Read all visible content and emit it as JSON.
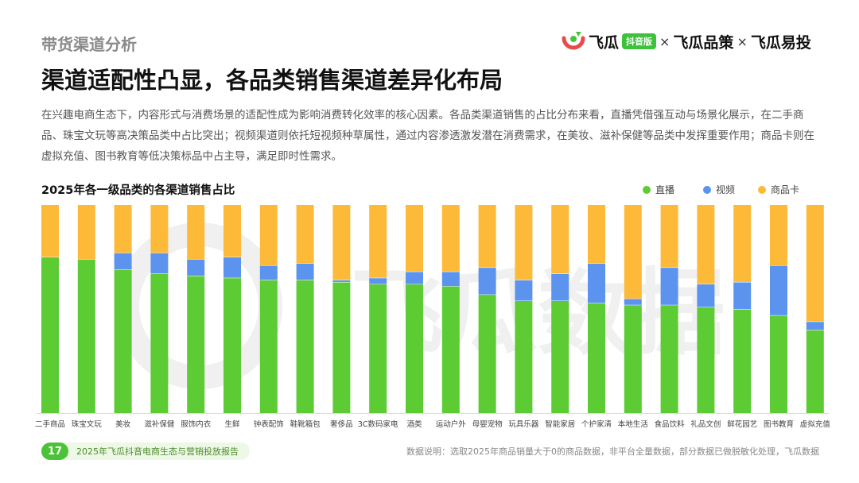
{
  "header": {
    "section": "带货渠道分析",
    "headline": "渠道适配性凸显，各品类销售渠道差异化布局",
    "intro": "在兴趣电商生态下，内容形式与消费场景的适配性成为影响消费转化效率的核心因素。各品类渠道销售的占比分布来看，直播凭借强互动与场景化展示，在二手商品、珠宝文玩等高决策品类中占比突出；视频渠道则依托短视频种草属性，通过内容渗透激发潜在消费需求，在美妆、滋补保健等品类中发挥重要作用；商品卡则在虚拟充值、图书教育等低决策标品中占主导，满足即时性需求。"
  },
  "logo": {
    "brand": "飞瓜",
    "badge": "抖音版",
    "sep": "×",
    "product2": "飞瓜品策",
    "product3": "飞瓜易投",
    "mark": "feigua-logo-icon"
  },
  "watermark": "飞瓜数据",
  "footer": {
    "page": "17",
    "report": "2025年飞瓜抖音电商生态与营销投放报告",
    "note": "数据说明：选取2025年商品销量大于0的商品数据，非平台全量数据，部分数据已做脱敏化处理，飞瓜数据"
  },
  "colors": {
    "live": "#5ccb34",
    "video": "#5b93ef",
    "card": "#fcba38",
    "brand_green": "#4cc238",
    "brand_red": "#e94b4b"
  },
  "chart_data": {
    "type": "bar",
    "stacked": true,
    "percent": true,
    "title": "2025年各一级品类的各渠道销售占比",
    "legend_position": "top-right",
    "grid": false,
    "ylim": [
      0,
      100
    ],
    "categories": [
      "二手商品",
      "珠宝文玩",
      "美妆",
      "滋补保健",
      "服饰内衣",
      "生鲜",
      "钟表配饰",
      "鞋靴箱包",
      "奢侈品",
      "3C数码家电",
      "酒类",
      "运动户外",
      "母婴宠物",
      "玩具乐器",
      "智能家居",
      "个护家清",
      "本地生活",
      "食品饮料",
      "礼品文创",
      "鲜花园艺",
      "图书教育",
      "虚拟充值"
    ],
    "series": [
      {
        "name": "直播",
        "values": [
          75,
          74,
          69,
          67,
          66,
          65,
          64,
          64,
          63,
          62,
          62,
          61,
          57,
          54,
          54,
          53,
          52,
          52,
          51,
          50,
          47,
          40
        ]
      },
      {
        "name": "视频",
        "values": [
          0,
          0,
          8,
          10,
          8,
          10,
          7,
          8,
          1,
          3,
          6,
          7,
          13,
          10,
          13,
          19,
          3,
          18,
          11,
          13,
          24,
          4
        ]
      },
      {
        "name": "商品卡",
        "values": [
          25,
          26,
          23,
          23,
          26,
          25,
          29,
          28,
          36,
          35,
          32,
          32,
          30,
          36,
          33,
          28,
          45,
          30,
          38,
          37,
          29,
          56
        ]
      }
    ]
  }
}
